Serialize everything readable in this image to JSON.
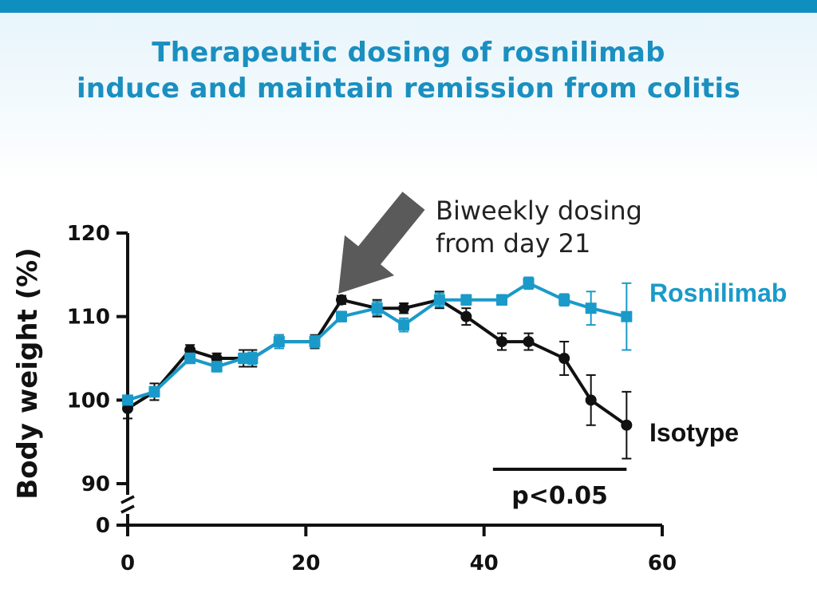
{
  "title": {
    "line1": "Therapeutic dosing of rosnilimab",
    "line2": "induce and maintain remission from colitis"
  },
  "colors": {
    "accent": "#1a8fc0",
    "top_bar": "#0f8fc0",
    "rosnilimab": "#1a9ac9",
    "isotype": "#111111",
    "arrow": "#5a5a5a"
  },
  "annotation": {
    "line1": "Biweekly dosing",
    "line2": "from day 21",
    "arrow_at_day": 24
  },
  "significance": {
    "label": "p<0.05",
    "from_day": 41,
    "to_day": 56
  },
  "chart_data": {
    "type": "line",
    "title": "",
    "xlabel": "",
    "ylabel": "Body weight (%)",
    "xlim": [
      0,
      60
    ],
    "ylim": [
      90,
      120
    ],
    "y_axis_break": true,
    "y_break_lower_tick": 0,
    "x_ticks": [
      0,
      20,
      40,
      60
    ],
    "y_ticks": [
      90,
      100,
      110,
      120
    ],
    "grid": false,
    "legend": "direct labels at right end of lines",
    "series": [
      {
        "name": "Rosnilimab",
        "marker": "square",
        "x": [
          0,
          3,
          7,
          10,
          13,
          14,
          17,
          21,
          24,
          28,
          31,
          35,
          38,
          42,
          45,
          49,
          52,
          56
        ],
        "y": [
          100,
          101,
          105,
          104,
          105,
          105,
          107,
          107,
          110,
          111,
          109,
          112,
          112,
          112,
          114,
          112,
          111,
          110
        ],
        "err": [
          0.4,
          0.6,
          0.6,
          0.6,
          0.6,
          0.7,
          0.8,
          0.7,
          0.6,
          0.8,
          0.8,
          0.8,
          0.6,
          0.6,
          0.7,
          0.7,
          2.0,
          4.0
        ]
      },
      {
        "name": "Isotype",
        "marker": "circle",
        "x": [
          0,
          3,
          7,
          10,
          13,
          14,
          17,
          21,
          24,
          28,
          31,
          35,
          38,
          42,
          45,
          49,
          52,
          56
        ],
        "y": [
          99,
          101,
          106,
          105,
          105,
          105,
          107,
          107,
          112,
          111,
          111,
          112,
          110,
          107,
          107,
          105,
          100,
          97
        ],
        "err": [
          1.2,
          1.0,
          0.6,
          0.6,
          1.0,
          1.0,
          0.8,
          0.8,
          0.5,
          1.0,
          0.6,
          1.0,
          1.0,
          1.0,
          1.0,
          2.0,
          3.0,
          4.0
        ]
      }
    ]
  }
}
